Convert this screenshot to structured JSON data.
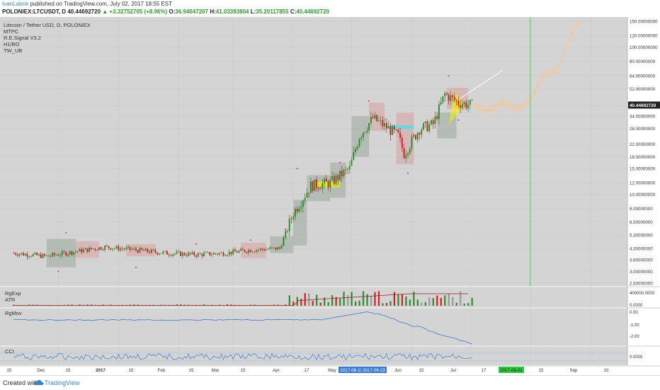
{
  "header": {
    "author": "IvanLabrie",
    "published_text": " published on TradingView.com, July 02, 2017 18:55 EST",
    "symbol": "POLONIEX:LTCUSDT, D",
    "last": "40.44692720",
    "change": "▲ +3.32752705 (+8.96%)",
    "o_label": "O:",
    "o_val": "36.94047207",
    "h_label": "H:",
    "h_val": "41.03393804",
    "l_label": "L:",
    "l_val": "35.20117855",
    "c_label": "C:",
    "c_val": "40.44692720"
  },
  "legend": {
    "main": [
      "Litecoin / Tether USD, D, POLONIEX",
      "MTPC",
      "R.E.Signal V3.2",
      "H1/BO",
      "TW_UB"
    ],
    "pane2": [
      "RgExp",
      "ATR"
    ],
    "pane3": [
      "RgMov"
    ],
    "pane4": [
      "CCI"
    ]
  },
  "footer": {
    "created_with": "Created with",
    "brand": "TradingView"
  },
  "colors": {
    "bg_chart": "#d4d4d4",
    "up": "#2e8b2e",
    "down": "#cc2222",
    "projection": "#f2c8a0",
    "green_line": "#2ecc40",
    "blue": "#3a7bd5",
    "dark_red": "#a02020"
  },
  "chart_data": [
    {
      "type": "candlestick",
      "title": "Litecoin / Tether USD, D, POLONIEX",
      "y_scale": "log",
      "y_tick_labels": [
        "150.00000000",
        "120.00000000",
        "100.00000000",
        "80.00000000",
        "64.00000000",
        "52.00000000",
        "40.00000000",
        "34.00000000",
        "28.00000000",
        "22.00000000",
        "18.00000000",
        "15.00000000",
        "12.00000000",
        "10.00000000",
        "8.00000000",
        "6.50000000",
        "5.30000000",
        "4.30000000",
        "3.60000000",
        "3.00000000",
        "2.50000000"
      ],
      "y_ticks": [
        150,
        120,
        100,
        80,
        64,
        52,
        40,
        34,
        28,
        22,
        18,
        15,
        12,
        10,
        8,
        6.5,
        5.3,
        4.3,
        3.6,
        3.0,
        2.5
      ],
      "x_tick_labels": [
        "15",
        "Dec",
        "15",
        "2017",
        "15",
        "Feb",
        "15",
        "Mar",
        "15",
        "Apr",
        "17",
        "May",
        "2017-06-11",
        "2017-06-23",
        "Jun",
        "15",
        "Jul",
        "17",
        "2017-08-01",
        "15",
        "Sep",
        "10"
      ],
      "last_price_label": "40.44692720",
      "price_path": [
        {
          "x": "2016-11-08",
          "y": 4.0
        },
        {
          "x": "2016-11-25",
          "y": 3.8
        },
        {
          "x": "2016-12-10",
          "y": 4.1
        },
        {
          "x": "2016-12-25",
          "y": 4.4
        },
        {
          "x": "2017-01-10",
          "y": 4.2
        },
        {
          "x": "2017-01-25",
          "y": 4.0
        },
        {
          "x": "2017-02-10",
          "y": 3.9
        },
        {
          "x": "2017-02-25",
          "y": 4.0
        },
        {
          "x": "2017-03-10",
          "y": 4.2
        },
        {
          "x": "2017-03-25",
          "y": 4.3
        },
        {
          "x": "2017-04-01",
          "y": 7.5
        },
        {
          "x": "2017-04-10",
          "y": 11.5
        },
        {
          "x": "2017-04-20",
          "y": 12.0
        },
        {
          "x": "2017-04-30",
          "y": 15.0
        },
        {
          "x": "2017-05-05",
          "y": 25.0
        },
        {
          "x": "2017-05-12",
          "y": 33.0
        },
        {
          "x": "2017-05-20",
          "y": 28.0
        },
        {
          "x": "2017-05-25",
          "y": 25.0
        },
        {
          "x": "2017-05-28",
          "y": 19.0
        },
        {
          "x": "2017-06-05",
          "y": 28.0
        },
        {
          "x": "2017-06-12",
          "y": 30.0
        },
        {
          "x": "2017-06-18",
          "y": 48.0
        },
        {
          "x": "2017-06-25",
          "y": 42.0
        },
        {
          "x": "2017-07-02",
          "y": 40.45
        }
      ],
      "projection": [
        {
          "x": "2017-07-02",
          "y": 41
        },
        {
          "x": "2017-07-10",
          "y": 37
        },
        {
          "x": "2017-07-18",
          "y": 42
        },
        {
          "x": "2017-07-26",
          "y": 38
        },
        {
          "x": "2017-08-01",
          "y": 44
        },
        {
          "x": "2017-08-08",
          "y": 64
        },
        {
          "x": "2017-08-15",
          "y": 70
        },
        {
          "x": "2017-08-22",
          "y": 120
        },
        {
          "x": "2017-08-26",
          "y": 150
        }
      ]
    },
    {
      "type": "bar",
      "title": "RgExp / ATR",
      "y_tick_labels": [
        "400000.0000",
        "0.0000"
      ]
    },
    {
      "type": "line",
      "title": "RgMov",
      "y_tick_labels": [
        "0.00",
        "-1.00",
        "-2.00"
      ]
    },
    {
      "type": "line",
      "title": "CCI",
      "y_tick_labels": [
        "0.0000"
      ]
    }
  ]
}
